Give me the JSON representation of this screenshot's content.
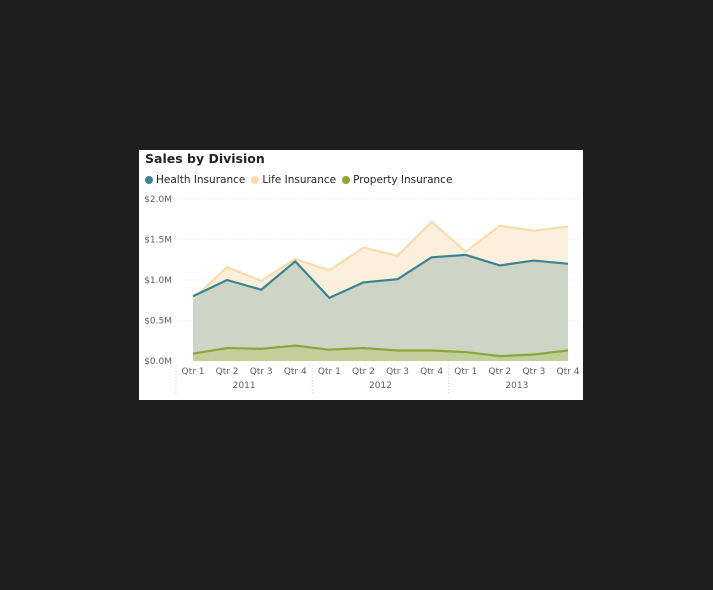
{
  "chart_data": {
    "type": "area",
    "title": "Sales by Division",
    "xlabel": "",
    "ylabel": "",
    "ylim": [
      0,
      2000000
    ],
    "yticks": [
      {
        "value": 0,
        "label": "$0.0M"
      },
      {
        "value": 500000,
        "label": "$0.5M"
      },
      {
        "value": 1000000,
        "label": "$1.0M"
      },
      {
        "value": 1500000,
        "label": "$1.5M"
      },
      {
        "value": 2000000,
        "label": "$2.0M"
      }
    ],
    "categories": [
      "Qtr 1",
      "Qtr 2",
      "Qtr 3",
      "Qtr 4",
      "Qtr 1",
      "Qtr 2",
      "Qtr 3",
      "Qtr 4",
      "Qtr 1",
      "Qtr 2",
      "Qtr 3",
      "Qtr 4"
    ],
    "groups": [
      {
        "label": "2011",
        "count": 4
      },
      {
        "label": "2012",
        "count": 4
      },
      {
        "label": "2013",
        "count": 4
      }
    ],
    "grid": true,
    "legend_position": "top-left",
    "series": [
      {
        "name": "Health Insurance",
        "color": "#3b8592",
        "fill": "#cfd5c6",
        "values": [
          800000,
          1000000,
          880000,
          1230000,
          780000,
          970000,
          1010000,
          1280000,
          1310000,
          1180000,
          1240000,
          1200000
        ]
      },
      {
        "name": "Life Insurance",
        "color": "#f7dcae",
        "fill": "#fcefdc",
        "values": [
          760000,
          1160000,
          990000,
          1260000,
          1120000,
          1400000,
          1300000,
          1720000,
          1350000,
          1670000,
          1610000,
          1660000
        ]
      },
      {
        "name": "Property Insurance",
        "color": "#8aa63c",
        "fill": "#c2cf9b",
        "values": [
          90000,
          160000,
          150000,
          190000,
          140000,
          160000,
          130000,
          130000,
          110000,
          60000,
          80000,
          130000
        ]
      }
    ]
  }
}
